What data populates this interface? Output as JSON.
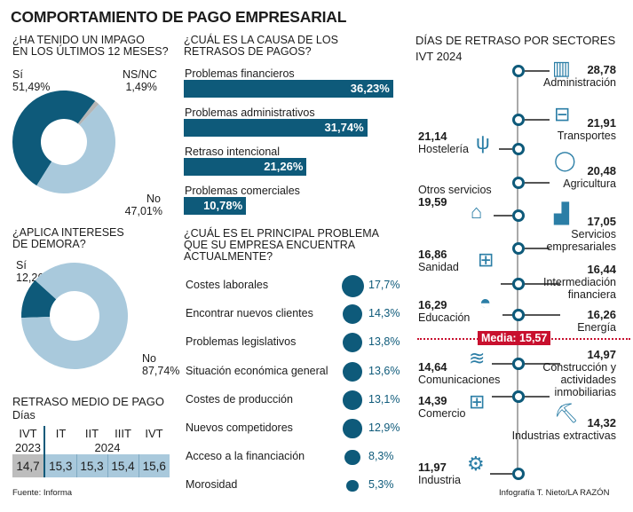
{
  "title": "COMPORTAMIENTO DE PAGO EMPRESARIAL",
  "colors": {
    "dark": "#0e5a7a",
    "light": "#a9c9dc",
    "grey": "#b5b5b5",
    "media": "#c8102e"
  },
  "chart_data": [
    {
      "type": "pie",
      "title": "¿HA TENIDO UN IMPAGO EN LOS ÚLTIMOS 12 MESES?",
      "slices": [
        {
          "name": "Sí",
          "value": 51.49,
          "label": "51,49%"
        },
        {
          "name": "NS/NC",
          "value": 1.49,
          "label": "1,49%"
        },
        {
          "name": "No",
          "value": 47.01,
          "label": "47,01%"
        }
      ]
    },
    {
      "type": "pie",
      "title": "¿APLICA INTERESES DE DEMORA?",
      "slices": [
        {
          "name": "Sí",
          "value": 12.26,
          "label": "12,26%"
        },
        {
          "name": "No",
          "value": 87.74,
          "label": "87,74%"
        }
      ]
    },
    {
      "type": "table",
      "title": "RETRASO MEDIO DE PAGO",
      "subtitle": "Días",
      "columns": [
        "IVT",
        "IT",
        "IIT",
        "IIIT",
        "IVT"
      ],
      "years": [
        "2023",
        "2024"
      ],
      "values": [
        14.7,
        15.3,
        15.3,
        15.4,
        15.6
      ],
      "labels": [
        "14,7",
        "15,3",
        "15,3",
        "15,4",
        "15,6"
      ]
    },
    {
      "type": "bar",
      "title": "¿CUÁL ES LA CAUSA DE LOS RETRASOS DE PAGOS?",
      "categories": [
        "Problemas financieros",
        "Problemas administrativos",
        "Retraso intencional",
        "Problemas comerciales"
      ],
      "values": [
        36.23,
        31.74,
        21.26,
        10.78
      ],
      "labels": [
        "36,23%",
        "31,74%",
        "21,26%",
        "10,78%"
      ]
    },
    {
      "type": "scatter",
      "title": "¿CUÁL ES EL PRINCIPAL PROBLEMA QUE SU EMPRESA ENCUENTRA ACTUALMENTE?",
      "categories": [
        "Costes laborales",
        "Encontrar nuevos clientes",
        "Problemas legislativos",
        "Situación económica general",
        "Costes de producción",
        "Nuevos competidores",
        "Acceso a la financiación",
        "Morosidad"
      ],
      "values": [
        17.7,
        14.3,
        13.8,
        13.6,
        13.1,
        12.9,
        8.3,
        5.3
      ],
      "labels": [
        "17,7%",
        "14,3%",
        "13,8%",
        "13,6%",
        "13,1%",
        "12,9%",
        "8,3%",
        "5,3%"
      ]
    },
    {
      "type": "line",
      "title": "DÍAS DE RETRASO POR SECTORES",
      "subtitle": "IVT 2024",
      "media": {
        "label": "Media: 15,57",
        "value": 15.57
      },
      "sectors": [
        {
          "name": "Administración",
          "value": 28.78,
          "label": "28,78",
          "icon": "filing-cabinet-icon"
        },
        {
          "name": "Transportes",
          "value": 21.91,
          "label": "21,91",
          "icon": "bus-icon"
        },
        {
          "name": "Hostelería",
          "value": 21.14,
          "label": "21,14",
          "icon": "cutlery-icon"
        },
        {
          "name": "Agricultura",
          "value": 20.48,
          "label": "20,48",
          "icon": "apple-icon"
        },
        {
          "name": "Otros servicios",
          "value": 19.59,
          "label": "19,59",
          "icon": "shop-icon"
        },
        {
          "name": "Servicios empresariales",
          "value": 17.05,
          "label": "17,05",
          "icon": "growth-chart-icon"
        },
        {
          "name": "Sanidad",
          "value": 16.86,
          "label": "16,86",
          "icon": "medical-kit-icon"
        },
        {
          "name": "Intermediación financiera",
          "value": 16.44,
          "label": "16,44",
          "icon": ""
        },
        {
          "name": "Educación",
          "value": 16.29,
          "label": "16,29",
          "icon": "graduate-icon"
        },
        {
          "name": "Energía",
          "value": 16.26,
          "label": "16,26",
          "icon": ""
        },
        {
          "name": "Comunicaciones",
          "value": 14.64,
          "label": "14,64",
          "icon": "wifi-icon"
        },
        {
          "name": "Construcción y actividades inmobiliarias",
          "value": 14.97,
          "label": "14,97",
          "icon": ""
        },
        {
          "name": "Comercio",
          "value": 14.39,
          "label": "14,39",
          "icon": "shopping-cart-icon"
        },
        {
          "name": "Industrias extractivas",
          "value": 14.32,
          "label": "14,32",
          "icon": "mine-cart-icon"
        },
        {
          "name": "Industria",
          "value": 11.97,
          "label": "11,97",
          "icon": "gears-icon"
        }
      ]
    }
  ],
  "labels": {
    "q1a": "¿HA TENIDO UN IMPAGO",
    "q1b": "EN LOS ÚLTIMOS 12 MESES?",
    "q2a": "¿APLICA INTERESES",
    "q2b": "DE DEMORA?",
    "q3a": "¿CUÁL ES LA CAUSA DE LOS",
    "q3b": "RETRASOS DE PAGOS?",
    "q4a": "¿CUÁL ES EL PRINCIPAL PROBLEMA",
    "q4b": "QUE SU EMPRESA ENCUENTRA",
    "q4c": "ACTUALMENTE?",
    "si": "Sí",
    "nsnc": "NS/NC",
    "no": "No",
    "sectors_title": "DÍAS DE RETRASO POR SECTORES",
    "sectors_sub": "IVT 2024",
    "rm_title": "RETRASO MEDIO DE PAGO",
    "rm_sub": "Días"
  },
  "footer": {
    "source": "Fuente: Informa",
    "credit": "Infografía T. Nieto/LA RAZÓN"
  }
}
